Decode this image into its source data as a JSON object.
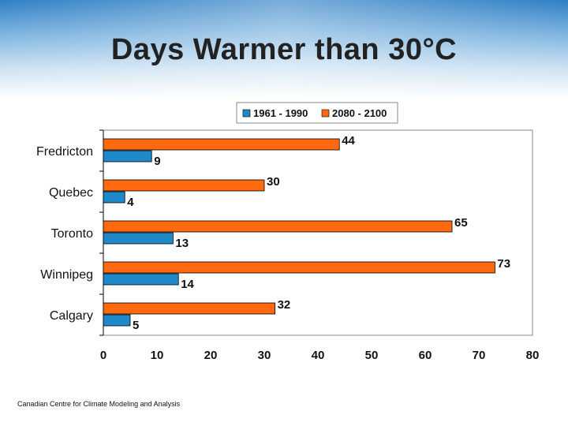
{
  "slide": {
    "title": "Days Warmer than 30°C",
    "footer": "Canadian Centre for Climate Modeling and Analysis"
  },
  "colors": {
    "series_1961": "#1e88c8",
    "series_2080": "#ff6a10",
    "header": "#2f7fc4"
  },
  "chart_data": {
    "type": "bar",
    "orientation": "horizontal",
    "title": "Days Warmer than 30°C",
    "categories": [
      "Fredricton",
      "Quebec",
      "Toronto",
      "Winnipeg",
      "Calgary"
    ],
    "series": [
      {
        "name": "1961 - 1990",
        "values": [
          9,
          4,
          13,
          14,
          5
        ]
      },
      {
        "name": "2080 - 2100",
        "values": [
          44,
          30,
          65,
          73,
          32
        ]
      }
    ],
    "xlim": [
      0,
      80
    ],
    "xticks": [
      0,
      10,
      20,
      30,
      40,
      50,
      60,
      70,
      80
    ],
    "xlabel": "",
    "ylabel": "",
    "grid": false,
    "legend_position": "top"
  }
}
